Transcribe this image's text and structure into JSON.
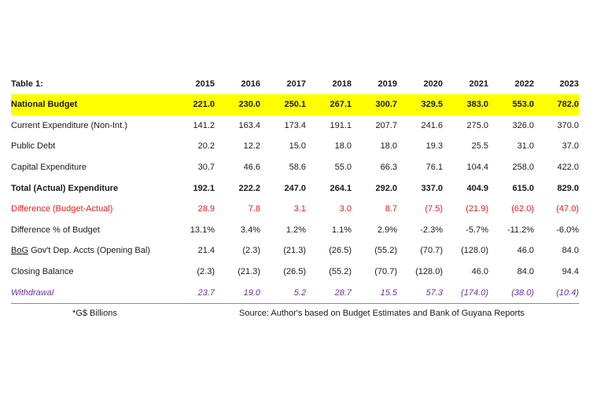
{
  "table": {
    "title": "Table 1:",
    "years": [
      "2015",
      "2016",
      "2017",
      "2018",
      "2019",
      "2020",
      "2021",
      "2022",
      "2023"
    ],
    "rows": [
      {
        "label_pre": "",
        "label_u": "",
        "label_post": "National Budget",
        "values": [
          "221.0",
          "230.0",
          "250.1",
          "267.1",
          "300.7",
          "329.5",
          "383.0",
          "553.0",
          "782.0"
        ],
        "style": "highlight"
      },
      {
        "label_pre": "",
        "label_u": "",
        "label_post": "Current Expenditure (Non-Int.)",
        "values": [
          "141.2",
          "163.4",
          "173.4",
          "191.1",
          "207.7",
          "241.6",
          "275.0",
          "326.0",
          "370.0"
        ],
        "style": "normal"
      },
      {
        "label_pre": "",
        "label_u": "",
        "label_post": "Public Debt",
        "values": [
          "20.2",
          "12.2",
          "15.0",
          "18.0",
          "18.0",
          "19.3",
          "25.5",
          "31.0",
          "37.0"
        ],
        "style": "normal"
      },
      {
        "label_pre": "",
        "label_u": "",
        "label_post": "Capital Expenditure",
        "values": [
          "30.7",
          "46.6",
          "58.6",
          "55.0",
          "66.3",
          "76.1",
          "104.4",
          "258.0",
          "422.0"
        ],
        "style": "normal"
      },
      {
        "label_pre": "",
        "label_u": "",
        "label_post": "Total (Actual) Expenditure",
        "values": [
          "192.1",
          "222.2",
          "247.0",
          "264.1",
          "292.0",
          "337.0",
          "404.9",
          "615.0",
          "829.0"
        ],
        "style": "bold"
      },
      {
        "label_pre": "",
        "label_u": "",
        "label_post": "Difference (Budget-Actual)",
        "values": [
          "28.9",
          "7.8",
          "3.1",
          "3.0",
          "8.7",
          "(7.5)",
          "(21.9)",
          "(62.0)",
          "(47.0)"
        ],
        "style": "red"
      },
      {
        "label_pre": "",
        "label_u": "",
        "label_post": "Difference % of Budget",
        "values": [
          "13.1%",
          "3.4%",
          "1.2%",
          "1.1%",
          "2.9%",
          "-2.3%",
          "-5.7%",
          "-11.2%",
          "-6.0%"
        ],
        "style": "normal"
      },
      {
        "label_pre": "",
        "label_u": "BoG",
        "label_post": " Gov't Dep. Accts (Opening Bal)",
        "values": [
          "21.4",
          "(2.3)",
          "(21.3)",
          "(26.5)",
          "(55.2)",
          "(70.7)",
          "(128.0)",
          "46.0",
          "84.0"
        ],
        "style": "normal"
      },
      {
        "label_pre": "",
        "label_u": "",
        "label_post": "Closing Balance",
        "values": [
          "(2.3)",
          "(21.3)",
          "(26.5)",
          "(55.2)",
          "(70.7)",
          "(128.0)",
          "46.0",
          "84.0",
          "94.4"
        ],
        "style": "normal"
      },
      {
        "label_pre": "",
        "label_u": "",
        "label_post": "Withdrawal",
        "values": [
          "23.7",
          "19.0",
          "5.2",
          "28.7",
          "15.5",
          "57.3",
          "(174.0)",
          "(38.0)",
          "(10.4)"
        ],
        "style": "purple"
      }
    ]
  },
  "footer": {
    "units_note": "*G$ Billions",
    "source": "Source: Author's based on Budget Estimates and Bank of Guyana Reports"
  },
  "colors": {
    "highlight": "#ffff00",
    "difference_red": "#e02020",
    "withdrawal_purple": "#7030a0",
    "rule": "#8a8a8a"
  }
}
